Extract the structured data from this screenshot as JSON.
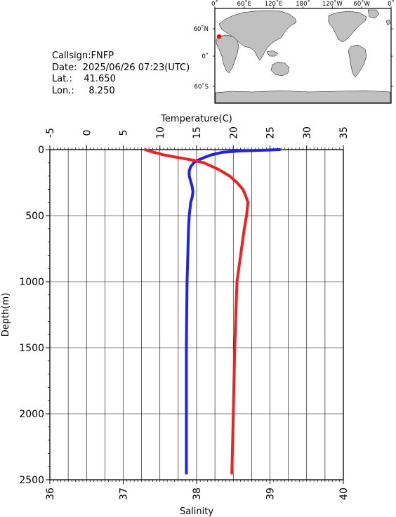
{
  "station": {
    "callsign_label": "Callsign:",
    "callsign": "FNFP",
    "date_label": "Date:",
    "date": "2025/06/26 07:23(UTC)",
    "lat_label": "Lat.:",
    "lat": "41.650",
    "lon_label": "Lon.:",
    "lon": "8.250"
  },
  "map": {
    "lon_ticks": [
      "0˚",
      "60˚E",
      "120˚E",
      "180˚",
      "120˚W",
      "60˚W",
      "0˚"
    ],
    "lat_ticks": [
      "60˚N",
      "0˚",
      "60˚S"
    ],
    "marker_color": "#ff0000",
    "ocean_color": "#ffffff",
    "land_color": "#c0c0c0"
  },
  "chart_data": {
    "type": "line",
    "y": {
      "label": "Depth(m)",
      "range": [
        0,
        2500
      ],
      "ticks": [
        0,
        500,
        1000,
        1500,
        2000,
        2500
      ],
      "inverted": true
    },
    "top_axis": {
      "label": "Temperature(C)",
      "range": [
        -5,
        35
      ],
      "ticks": [
        -5,
        0,
        5,
        10,
        15,
        20,
        25,
        30,
        35
      ]
    },
    "bottom_axis": {
      "label": "Salinity",
      "range": [
        36,
        40
      ],
      "ticks": [
        36,
        37,
        38,
        39,
        40
      ]
    },
    "grid": true,
    "series": [
      {
        "axis": "top",
        "color": "#2222ee",
        "points": [
          [
            26.3,
            0
          ],
          [
            24,
            5
          ],
          [
            21,
            10
          ],
          [
            18.5,
            20
          ],
          [
            17,
            40
          ],
          [
            16,
            60
          ],
          [
            15.2,
            80
          ],
          [
            14.6,
            100
          ],
          [
            14.2,
            130
          ],
          [
            14,
            160
          ],
          [
            14,
            200
          ],
          [
            14.2,
            240
          ],
          [
            14.4,
            280
          ],
          [
            14.5,
            320
          ],
          [
            14.4,
            360
          ],
          [
            14.2,
            400
          ],
          [
            14,
            500
          ],
          [
            13.9,
            600
          ],
          [
            13.8,
            800
          ],
          [
            13.7,
            1000
          ],
          [
            13.6,
            1500
          ],
          [
            13.6,
            2000
          ],
          [
            13.6,
            2450
          ]
        ]
      },
      {
        "axis": "bottom",
        "color": "#ee2222",
        "points": [
          [
            37.3,
            0
          ],
          [
            37.35,
            10
          ],
          [
            37.42,
            20
          ],
          [
            37.55,
            40
          ],
          [
            37.75,
            60
          ],
          [
            37.95,
            80
          ],
          [
            38.1,
            100
          ],
          [
            38.3,
            150
          ],
          [
            38.45,
            200
          ],
          [
            38.55,
            250
          ],
          [
            38.63,
            300
          ],
          [
            38.67,
            350
          ],
          [
            38.7,
            400
          ],
          [
            38.68,
            500
          ],
          [
            38.65,
            600
          ],
          [
            38.6,
            800
          ],
          [
            38.55,
            1000
          ],
          [
            38.52,
            1500
          ],
          [
            38.5,
            2000
          ],
          [
            38.48,
            2450
          ]
        ]
      }
    ]
  }
}
